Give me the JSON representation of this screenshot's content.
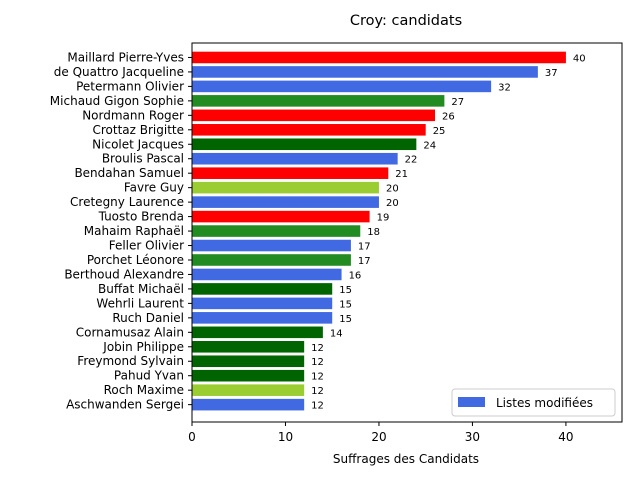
{
  "chart_data": {
    "type": "bar",
    "orientation": "horizontal",
    "title": "Croy: candidats",
    "xlabel": "Suffrages des Candidats",
    "ylabel": "",
    "xlim": [
      0,
      46
    ],
    "xticks": [
      0,
      10,
      20,
      30,
      40
    ],
    "grid": false,
    "legend": {
      "placement": "lower-right",
      "entries": [
        {
          "label": "Listes modifiées",
          "color": "#4169e1"
        }
      ]
    },
    "categories": [
      "Maillard Pierre-Yves",
      "de Quattro Jacqueline",
      "Petermann Olivier",
      "Michaud Gigon Sophie",
      "Nordmann Roger",
      "Crottaz Brigitte",
      "Nicolet Jacques",
      "Broulis Pascal",
      "Bendahan Samuel",
      "Favre Guy",
      "Cretegny Laurence",
      "Tuosto Brenda",
      "Mahaim Raphaël",
      "Feller Olivier",
      "Porchet Léonore",
      "Berthoud Alexandre",
      "Buffat Michaël",
      "Wehrli Laurent",
      "Ruch Daniel",
      "Cornamusaz Alain",
      "Jobin Philippe",
      "Freymond Sylvain",
      "Pahud Yvan",
      "Roch Maxime",
      "Aschwanden Sergei"
    ],
    "values": [
      40,
      37,
      32,
      27,
      26,
      25,
      24,
      22,
      21,
      20,
      20,
      19,
      18,
      17,
      17,
      16,
      15,
      15,
      15,
      14,
      12,
      12,
      12,
      12,
      12
    ],
    "colors": [
      "#ff0000",
      "#4169e1",
      "#4169e1",
      "#228b22",
      "#ff0000",
      "#ff0000",
      "#006400",
      "#4169e1",
      "#ff0000",
      "#9acd32",
      "#4169e1",
      "#ff0000",
      "#228b22",
      "#4169e1",
      "#228b22",
      "#4169e1",
      "#006400",
      "#4169e1",
      "#4169e1",
      "#006400",
      "#006400",
      "#006400",
      "#006400",
      "#9acd32",
      "#4169e1"
    ]
  }
}
